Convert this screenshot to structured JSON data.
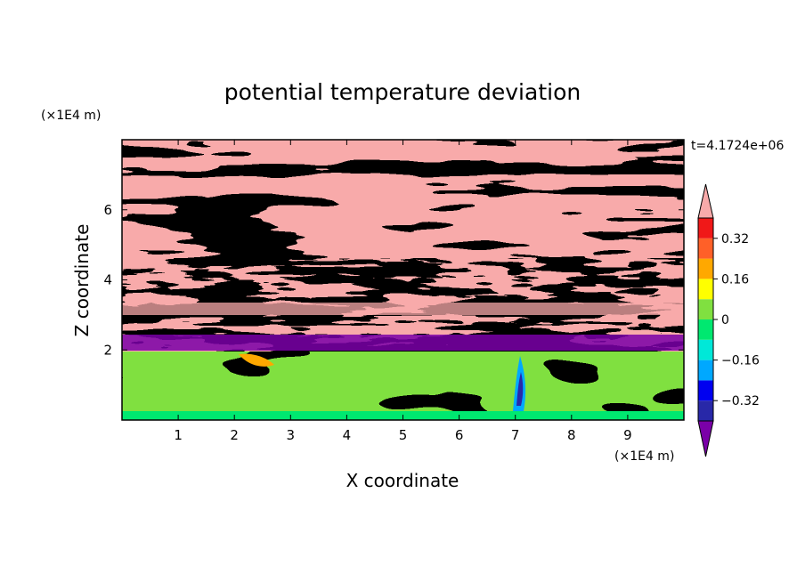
{
  "chart_data": {
    "type": "heatmap",
    "title": "potential temperature deviation",
    "xlabel": "X coordinate",
    "ylabel": "Z coordinate",
    "x_unit": "(×1E4 m)",
    "y_unit": "(×1E4 m)",
    "time_label": "t=4.1724e+06",
    "xlim": [
      0,
      10
    ],
    "ylim": [
      0,
      8
    ],
    "x_ticks": [
      1,
      2,
      3,
      4,
      5,
      6,
      7,
      8,
      9
    ],
    "y_ticks": [
      2,
      4,
      6
    ],
    "colorbar": {
      "levels": [
        -0.4,
        -0.32,
        -0.24,
        -0.16,
        -0.08,
        0,
        0.08,
        0.16,
        0.24,
        0.32,
        0.4
      ],
      "tick_labels": [
        {
          "value": 0.32,
          "label": "0.32"
        },
        {
          "value": 0.16,
          "label": "0.16"
        },
        {
          "value": 0,
          "label": "0"
        },
        {
          "value": -0.16,
          "label": "−0.16"
        },
        {
          "value": -0.32,
          "label": "−0.32"
        }
      ],
      "colors": [
        "#7a00a8",
        "#2828a8",
        "#0000f0",
        "#00a8ff",
        "#00e8d8",
        "#00e870",
        "#80e040",
        "#ffff00",
        "#ffa800",
        "#ff6028",
        "#f01818",
        "#f8aaaa"
      ],
      "extend": "both"
    },
    "bands": [
      {
        "z_range": [
          0,
          2
        ],
        "dominant_value": 0.08,
        "description_value": "near zero"
      },
      {
        "z_range": [
          2,
          4
        ],
        "dominant_value": 0.4,
        "secondary_value": -0.4
      },
      {
        "z_range": [
          4,
          8
        ],
        "dominant_value": 0.4,
        "secondary_value": -0.4
      }
    ]
  },
  "colors": {
    "frame": "#000000",
    "background": "#ffffff"
  }
}
